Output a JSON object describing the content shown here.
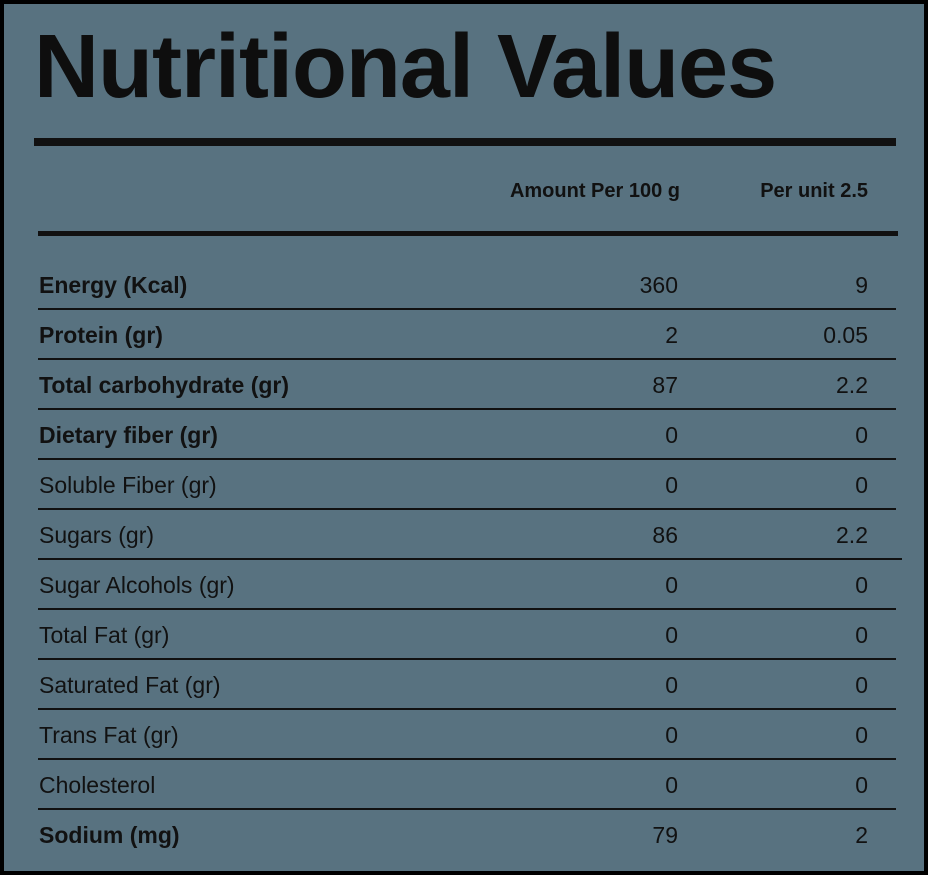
{
  "title": "Nutritional Values",
  "columns": {
    "amount_per_100g": "Amount Per 100 g",
    "per_unit": "Per unit 2.5"
  },
  "rows": [
    {
      "label": "Energy (Kcal)",
      "per100": "360",
      "perUnit": "9",
      "bold": true
    },
    {
      "label": "Protein (gr)",
      "per100": "2",
      "perUnit": "0.05",
      "bold": true
    },
    {
      "label": "Total carbohydrate (gr)",
      "per100": "87",
      "perUnit": "2.2",
      "bold": true
    },
    {
      "label": "Dietary fiber (gr)",
      "per100": "0",
      "perUnit": "0",
      "bold": true
    },
    {
      "label": "Soluble Fiber (gr)",
      "per100": "0",
      "perUnit": "0",
      "bold": false
    },
    {
      "label": "Sugars (gr)",
      "per100": "86",
      "perUnit": "2.2",
      "bold": false
    },
    {
      "label": "Sugar Alcohols (gr)",
      "per100": "0",
      "perUnit": "0",
      "bold": false
    },
    {
      "label": "Total Fat (gr)",
      "per100": "0",
      "perUnit": "0",
      "bold": false
    },
    {
      "label": "Saturated Fat (gr)",
      "per100": "0",
      "perUnit": "0",
      "bold": false
    },
    {
      "label": "Trans Fat (gr)",
      "per100": "0",
      "perUnit": "0",
      "bold": false
    },
    {
      "label": "Cholesterol",
      "per100": "0",
      "perUnit": "0",
      "bold": false
    },
    {
      "label": "Sodium (mg)",
      "per100": "79",
      "perUnit": "2",
      "bold": true
    }
  ],
  "colors": {
    "panel_background": "#587280",
    "frame": "#000000",
    "text": "#111111"
  }
}
